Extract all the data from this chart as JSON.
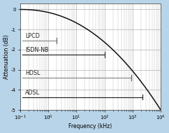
{
  "xlabel": "Frequency (kHz)",
  "ylabel": "Attenuation (dB)",
  "xlim": [
    0.1,
    10000
  ],
  "ylim": [
    -5,
    0.3
  ],
  "yticks": [
    0,
    -1,
    -2,
    -3,
    -4,
    -5
  ],
  "outer_bg": "#b8d4e8",
  "plot_bg": "#ffffff",
  "curve_color": "#111111",
  "curve_power": 2.2,
  "systems": [
    {
      "name": "LPCD",
      "y_level": -1.55,
      "x_end": 2.0,
      "line_color": "#888888",
      "marker_color": "#666666"
    },
    {
      "name": "ISDN-NB",
      "y_level": -2.25,
      "x_end": 100.0,
      "line_color": "#222222",
      "marker_color": "#222222"
    },
    {
      "name": "HDSL",
      "y_level": -3.4,
      "x_end": 900.0,
      "line_color": "#888888",
      "marker_color": "#666666"
    },
    {
      "name": "ADSL",
      "y_level": -4.35,
      "x_end": 2200.0,
      "line_color": "#222222",
      "marker_color": "#222222"
    }
  ],
  "x_start_systems": 0.12,
  "grid_color": "#aaaaaa",
  "label_fontsize": 6.0,
  "axis_fontsize": 5.5,
  "tick_fontsize": 5.0,
  "name_fontsize": 5.8
}
